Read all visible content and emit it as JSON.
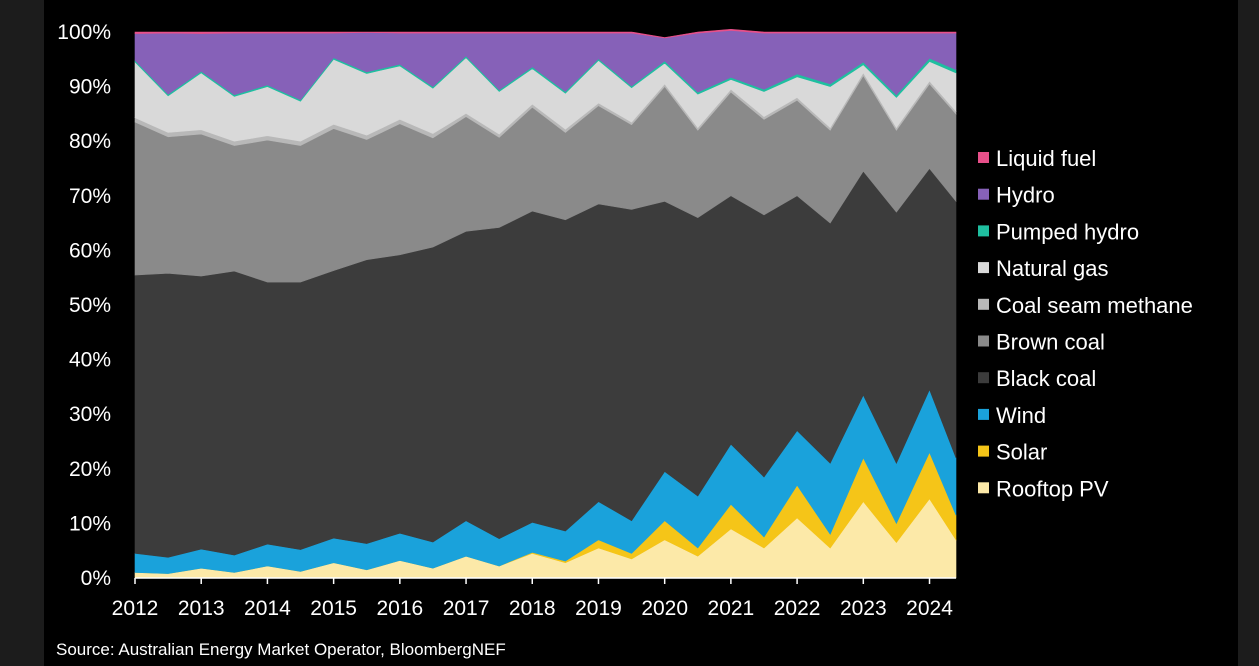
{
  "chart_data": {
    "type": "area",
    "stacked": true,
    "normalized_percent": true,
    "x": [
      2012.0,
      2012.5,
      2013.0,
      2013.5,
      2014.0,
      2014.5,
      2015.0,
      2015.5,
      2016.0,
      2016.5,
      2017.0,
      2017.5,
      2018.0,
      2018.5,
      2019.0,
      2019.5,
      2020.0,
      2020.5,
      2021.0,
      2021.5,
      2022.0,
      2022.5,
      2023.0,
      2023.5,
      2024.0,
      2024.4
    ],
    "series": [
      {
        "name": "Rooftop PV",
        "color": "#fce9a8",
        "values": [
          1.0,
          0.8,
          1.8,
          1.0,
          2.2,
          1.2,
          2.8,
          1.5,
          3.2,
          1.8,
          4.0,
          2.2,
          4.5,
          2.8,
          5.5,
          3.5,
          7.0,
          4.0,
          9.0,
          5.5,
          11.0,
          5.5,
          14.0,
          6.5,
          14.5,
          7.0
        ]
      },
      {
        "name": "Solar",
        "color": "#f5c518",
        "values": [
          0.0,
          0.0,
          0.0,
          0.0,
          0.0,
          0.0,
          0.0,
          0.0,
          0.0,
          0.0,
          0.0,
          0.0,
          0.2,
          0.3,
          1.5,
          1.0,
          3.5,
          1.5,
          4.5,
          2.0,
          6.0,
          2.5,
          8.0,
          3.5,
          8.5,
          4.5
        ]
      },
      {
        "name": "Wind",
        "color": "#1aa2db",
        "values": [
          3.5,
          3.0,
          3.5,
          3.2,
          4.0,
          4.0,
          4.5,
          4.8,
          5.0,
          4.8,
          6.5,
          5.0,
          5.5,
          5.5,
          7.0,
          6.0,
          9.0,
          9.5,
          11.0,
          11.0,
          10.0,
          13.0,
          11.5,
          11.0,
          11.5,
          10.5
        ]
      },
      {
        "name": "Black coal",
        "color": "#3c3c3c",
        "values": [
          51.0,
          52.0,
          50.0,
          52.0,
          48.0,
          49.0,
          49.0,
          52.0,
          51.0,
          54.0,
          53.0,
          57.0,
          57.0,
          57.0,
          54.5,
          57.0,
          49.5,
          51.0,
          45.5,
          48.0,
          43.0,
          44.0,
          41.0,
          46.0,
          40.5,
          47.0
        ]
      },
      {
        "name": "Brown coal",
        "color": "#8a8a8a",
        "values": [
          28.0,
          25.0,
          26.0,
          23.0,
          26.0,
          25.0,
          26.0,
          22.0,
          24.0,
          20.0,
          21.0,
          16.5,
          19.0,
          16.0,
          18.0,
          15.5,
          21.0,
          16.0,
          19.0,
          17.5,
          17.5,
          17.0,
          17.5,
          15.0,
          15.5,
          16.0
        ]
      },
      {
        "name": "Coal seam methane",
        "color": "#b8b8b8",
        "values": [
          0.8,
          0.8,
          0.8,
          0.8,
          0.8,
          0.8,
          0.8,
          0.8,
          0.8,
          0.8,
          0.6,
          0.6,
          0.6,
          0.6,
          0.5,
          0.5,
          0.5,
          0.5,
          0.5,
          0.5,
          0.5,
          0.5,
          0.5,
          0.5,
          0.5,
          0.5
        ]
      },
      {
        "name": "Natural gas",
        "color": "#d9d9d9",
        "values": [
          10.2,
          6.7,
          10.4,
          8.2,
          9.0,
          7.3,
          11.9,
          11.3,
          9.8,
          8.3,
          10.2,
          7.8,
          6.5,
          6.6,
          7.8,
          6.3,
          3.8,
          6.1,
          1.8,
          4.6,
          3.8,
          7.5,
          1.5,
          5.5,
          3.6,
          7.0
        ]
      },
      {
        "name": "Pumped hydro",
        "color": "#1fbfa0",
        "values": [
          0.3,
          0.3,
          0.3,
          0.3,
          0.3,
          0.3,
          0.3,
          0.3,
          0.3,
          0.3,
          0.3,
          0.3,
          0.3,
          0.3,
          0.3,
          0.3,
          0.4,
          0.4,
          0.4,
          0.4,
          0.5,
          0.5,
          0.5,
          0.5,
          0.6,
          0.6
        ]
      },
      {
        "name": "Hydro",
        "color": "#8661b8",
        "values": [
          4.9,
          11.2,
          6.9,
          11.3,
          9.5,
          12.2,
          4.5,
          7.2,
          5.7,
          9.8,
          4.2,
          10.4,
          6.2,
          10.7,
          4.7,
          9.7,
          4.2,
          10.8,
          8.6,
          10.3,
          7.5,
          9.3,
          5.3,
          11.3,
          4.6,
          6.7
        ]
      },
      {
        "name": "Liquid fuel",
        "color": "#e8508a",
        "values": [
          0.3,
          0.2,
          0.3,
          0.2,
          0.2,
          0.2,
          0.2,
          0.1,
          0.2,
          0.2,
          0.2,
          0.2,
          0.2,
          0.2,
          0.2,
          0.2,
          0.1,
          0.2,
          0.2,
          0.2,
          0.2,
          0.2,
          0.2,
          0.2,
          0.2,
          0.2
        ]
      }
    ],
    "legend_order": [
      "Liquid fuel",
      "Hydro",
      "Pumped hydro",
      "Natural gas",
      "Coal seam methane",
      "Brown coal",
      "Black coal",
      "Wind",
      "Solar",
      "Rooftop PV"
    ],
    "legend_placement": "right",
    "ylim": [
      0,
      100
    ],
    "xlim": [
      2012.0,
      2024.4
    ],
    "y_ticks": [
      {
        "value": 0,
        "label": "0%"
      },
      {
        "value": 10,
        "label": "10%"
      },
      {
        "value": 20,
        "label": "20%"
      },
      {
        "value": 30,
        "label": "30%"
      },
      {
        "value": 40,
        "label": "40%"
      },
      {
        "value": 50,
        "label": "50%"
      },
      {
        "value": 60,
        "label": "60%"
      },
      {
        "value": 70,
        "label": "70%"
      },
      {
        "value": 80,
        "label": "80%"
      },
      {
        "value": 90,
        "label": "90%"
      },
      {
        "value": 100,
        "label": "100%"
      }
    ],
    "x_ticks": [
      {
        "value": 2012,
        "label": "2012"
      },
      {
        "value": 2013,
        "label": "2013"
      },
      {
        "value": 2014,
        "label": "2014"
      },
      {
        "value": 2015,
        "label": "2015"
      },
      {
        "value": 2016,
        "label": "2016"
      },
      {
        "value": 2017,
        "label": "2017"
      },
      {
        "value": 2018,
        "label": "2018"
      },
      {
        "value": 2019,
        "label": "2019"
      },
      {
        "value": 2020,
        "label": "2020"
      },
      {
        "value": 2021,
        "label": "2021"
      },
      {
        "value": 2022,
        "label": "2022"
      },
      {
        "value": 2023,
        "label": "2023"
      },
      {
        "value": 2024,
        "label": "2024"
      }
    ],
    "grid": false,
    "source": "Source: Australian Energy Market Operator, BloombergNEF"
  }
}
